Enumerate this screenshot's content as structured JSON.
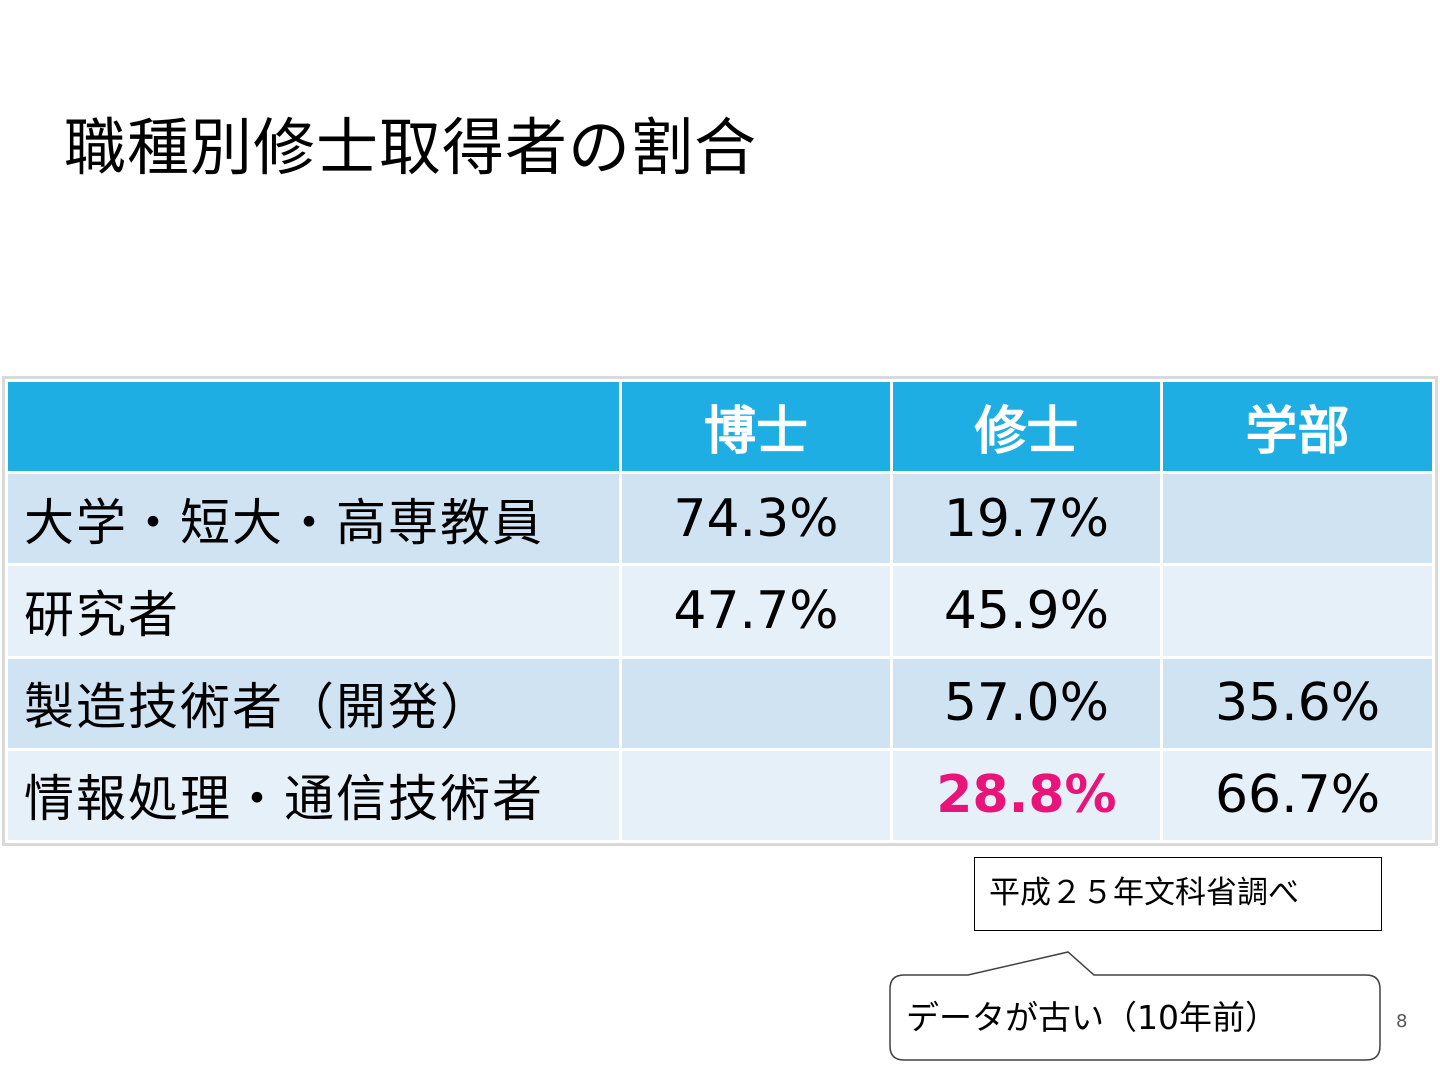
{
  "title": "職種別修士取得者の割合",
  "table": {
    "headers": [
      "",
      "博士",
      "修士",
      "学部"
    ],
    "rows": [
      {
        "label": "大学・短大・高専教員",
        "phd": "74.3%",
        "master": "19.7%",
        "bachelor": ""
      },
      {
        "label": "研究者",
        "phd": "47.7%",
        "master": "45.9%",
        "bachelor": ""
      },
      {
        "label": "製造技術者（開発）",
        "phd": "",
        "master": "57.0%",
        "bachelor": "35.6%"
      },
      {
        "label": "情報処理・通信技術者",
        "phd": "",
        "master": "28.8%",
        "bachelor": "66.7%"
      }
    ]
  },
  "colors": {
    "header_bg": "#1eaee3",
    "row_odd_bg": "#cfe3f3",
    "row_even_bg": "#e6f0f9",
    "highlight": "#e8147a"
  },
  "source_note": "平成２５年文科省調べ",
  "callout": "データが古い（10年前）",
  "page_number": "8"
}
